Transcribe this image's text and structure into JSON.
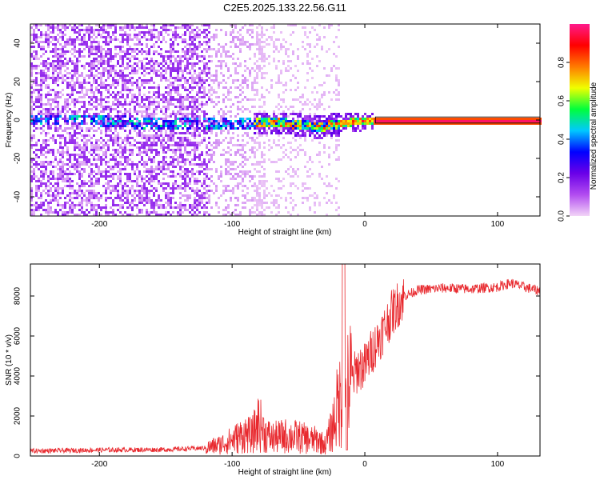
{
  "title": "C2E5.2025.133.22.56.G11",
  "chart_data": [
    {
      "type": "heatmap",
      "xlabel": "Height of straight line (km)",
      "ylabel": "Frequency (Hz)",
      "xlim": [
        -252,
        132
      ],
      "ylim": [
        -50,
        50
      ],
      "xticks": [
        -200,
        -100,
        0,
        100
      ],
      "yticks": [
        -40,
        -20,
        0,
        20,
        40
      ],
      "colorbar": {
        "label": "Normalized spectral amplitude",
        "range": [
          0,
          1
        ],
        "ticks": [
          0.0,
          0.2,
          0.4,
          0.6,
          0.8
        ],
        "colormap": [
          "#f2d4f7",
          "#b24cf0",
          "#6a00e8",
          "#0000ff",
          "#00c8ff",
          "#00ff3c",
          "#f0ff00",
          "#ff7a00",
          "#ff0000",
          "#ff1a8c"
        ]
      },
      "ridge": [
        {
          "x": -200,
          "y": 0.5
        },
        {
          "x": -150,
          "y": -2
        },
        {
          "x": -120,
          "y": -1
        },
        {
          "x": -100,
          "y": -2
        },
        {
          "x": -80,
          "y": -1
        },
        {
          "x": -60,
          "y": -1
        },
        {
          "x": -50,
          "y": -2
        },
        {
          "x": -35,
          "y": -3
        },
        {
          "x": -20,
          "y": -1.5
        },
        {
          "x": -10,
          "y": -0.5
        },
        {
          "x": 0,
          "y": 0
        },
        {
          "x": 132,
          "y": 0
        }
      ]
    },
    {
      "type": "line",
      "xlabel": "Height of straight line (km)",
      "ylabel": "SNR (10 * v/v)",
      "xlim": [
        -252,
        132
      ],
      "ylim": [
        0,
        9600
      ],
      "xticks": [
        -200,
        -100,
        0,
        100
      ],
      "yticks": [
        0,
        2000,
        4000,
        6000,
        8000
      ],
      "color": "#e8282d",
      "series": [
        {
          "x": [
            -252,
            -200,
            -150,
            -120,
            -110,
            -100,
            -90,
            -85,
            -80,
            -75,
            -70,
            -60,
            -50,
            -40,
            -35,
            -30,
            -25,
            -20,
            -15,
            -10,
            -5,
            0,
            5,
            10,
            15,
            20,
            25,
            30,
            40,
            50,
            60,
            80,
            100,
            110,
            120,
            132
          ],
          "y": [
            250,
            300,
            320,
            400,
            550,
            800,
            1100,
            1000,
            1700,
            1100,
            900,
            1000,
            950,
            800,
            800,
            550,
            1300,
            2600,
            3200,
            3800,
            4400,
            4500,
            5200,
            5800,
            6400,
            7100,
            7600,
            8000,
            8300,
            8350,
            8400,
            8350,
            8450,
            8650,
            8450,
            8250
          ]
        }
      ]
    }
  ]
}
